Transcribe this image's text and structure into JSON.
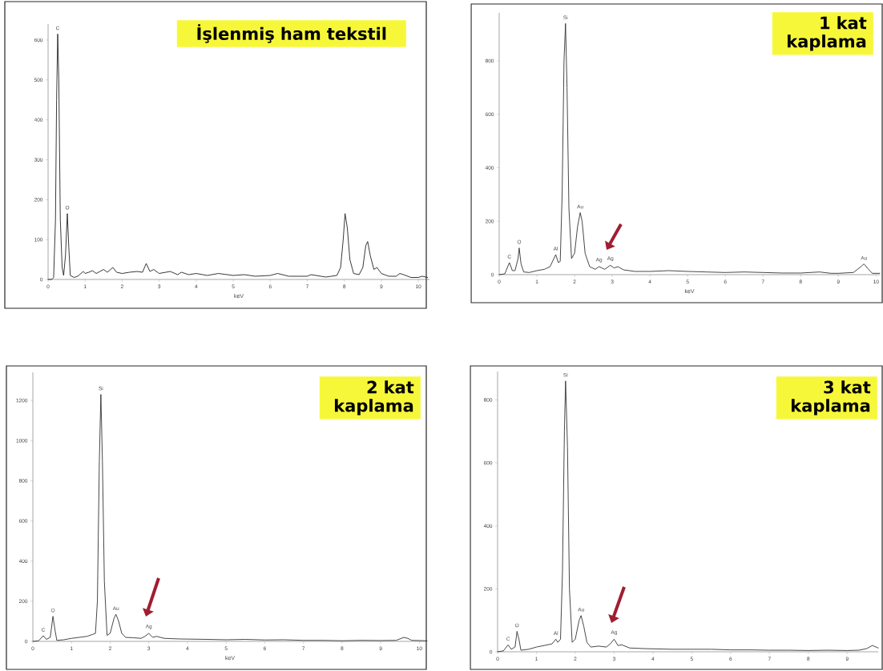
{
  "chart_data": [
    {
      "type": "line",
      "title": "İşlenmiş ham tekstil",
      "xlabel": "keV",
      "color": "#222222",
      "xlim": [
        0,
        10.3
      ],
      "ylim": [
        0,
        640
      ],
      "xticks": [
        0,
        1,
        2,
        3,
        4,
        5,
        6,
        7,
        8,
        9,
        10
      ],
      "yticks": [
        0,
        100,
        200,
        300,
        400,
        500,
        600
      ],
      "x": [
        0,
        0.1,
        0.15,
        0.2,
        0.23,
        0.26,
        0.29,
        0.33,
        0.38,
        0.42,
        0.47,
        0.52,
        0.56,
        0.6,
        0.7,
        0.8,
        0.95,
        1.0,
        1.1,
        1.2,
        1.3,
        1.4,
        1.5,
        1.6,
        1.75,
        1.85,
        2.0,
        2.2,
        2.4,
        2.55,
        2.65,
        2.75,
        2.85,
        3.0,
        3.3,
        3.5,
        3.6,
        3.8,
        4.0,
        4.3,
        4.6,
        5.0,
        5.3,
        5.6,
        6.0,
        6.2,
        6.5,
        7.0,
        7.1,
        7.5,
        7.8,
        7.9,
        7.97,
        8.02,
        8.08,
        8.15,
        8.25,
        8.4,
        8.5,
        8.58,
        8.63,
        8.7,
        8.8,
        8.88,
        9.0,
        9.2,
        9.4,
        9.5,
        9.6,
        9.8,
        10.0,
        10.1,
        10.25
      ],
      "values": [
        0,
        0,
        5,
        150,
        450,
        615,
        500,
        150,
        30,
        10,
        60,
        165,
        80,
        10,
        5,
        8,
        20,
        15,
        18,
        22,
        15,
        20,
        25,
        18,
        30,
        18,
        15,
        18,
        20,
        18,
        40,
        20,
        25,
        15,
        20,
        12,
        18,
        12,
        15,
        10,
        15,
        10,
        12,
        8,
        10,
        15,
        8,
        8,
        12,
        6,
        10,
        30,
        100,
        165,
        130,
        50,
        15,
        12,
        30,
        85,
        95,
        60,
        25,
        30,
        15,
        8,
        8,
        15,
        12,
        5,
        5,
        8,
        5
      ],
      "annotations": [
        {
          "text": "C",
          "x": 0.26,
          "y": 615
        },
        {
          "text": "O",
          "x": 0.52,
          "y": 165
        }
      ]
    },
    {
      "type": "line",
      "title": "1 kat kaplama",
      "xlabel": "keV",
      "color": "#333333",
      "xlim": [
        0,
        10.1
      ],
      "ylim": [
        0,
        980
      ],
      "xticks": [
        0,
        1,
        2,
        3,
        4,
        5,
        6,
        7,
        8,
        9,
        10
      ],
      "yticks": [
        0,
        200,
        400,
        600,
        800
      ],
      "x": [
        0,
        0.15,
        0.27,
        0.35,
        0.42,
        0.5,
        0.53,
        0.58,
        0.65,
        0.8,
        1.0,
        1.2,
        1.35,
        1.45,
        1.5,
        1.57,
        1.62,
        1.67,
        1.72,
        1.76,
        1.8,
        1.85,
        1.92,
        2.0,
        2.08,
        2.15,
        2.2,
        2.28,
        2.4,
        2.55,
        2.65,
        2.8,
        2.95,
        3.05,
        3.15,
        3.3,
        3.6,
        4.0,
        4.5,
        5.0,
        5.5,
        6.0,
        6.5,
        7.0,
        7.5,
        8.0,
        8.5,
        8.8,
        9.0,
        9.4,
        9.6,
        9.68,
        9.8,
        9.9,
        10.1
      ],
      "values": [
        0,
        3,
        45,
        15,
        15,
        60,
        100,
        40,
        10,
        8,
        15,
        20,
        30,
        60,
        75,
        45,
        50,
        300,
        800,
        940,
        700,
        250,
        60,
        80,
        180,
        232,
        200,
        80,
        30,
        20,
        30,
        20,
        35,
        25,
        30,
        18,
        12,
        12,
        15,
        12,
        10,
        8,
        10,
        8,
        6,
        6,
        10,
        5,
        5,
        8,
        30,
        40,
        20,
        5,
        5
      ],
      "annotations": [
        {
          "text": "C",
          "x": 0.27,
          "y": 45
        },
        {
          "text": "O",
          "x": 0.53,
          "y": 100
        },
        {
          "text": "Al",
          "x": 1.5,
          "y": 75
        },
        {
          "text": "Si",
          "x": 1.76,
          "y": 940
        },
        {
          "text": "Au",
          "x": 2.15,
          "y": 232
        },
        {
          "text": "Ag",
          "x": 2.65,
          "y": 30
        },
        {
          "text": "Ag",
          "x": 2.95,
          "y": 35
        },
        {
          "text": "Au",
          "x": 9.68,
          "y": 40
        }
      ]
    },
    {
      "type": "line",
      "title": "2 kat kaplama",
      "xlabel": "keV",
      "color": "#333333",
      "xlim": [
        0,
        10.2
      ],
      "ylim": [
        0,
        1340
      ],
      "xticks": [
        0,
        1,
        2,
        3,
        4,
        5,
        6,
        7,
        8,
        9,
        10
      ],
      "yticks": [
        0,
        200,
        400,
        600,
        800,
        1000,
        1200
      ],
      "x": [
        0,
        0.15,
        0.27,
        0.35,
        0.45,
        0.52,
        0.57,
        0.62,
        0.8,
        1.0,
        1.2,
        1.4,
        1.55,
        1.62,
        1.67,
        1.72,
        1.76,
        1.8,
        1.85,
        1.92,
        2.0,
        2.1,
        2.15,
        2.22,
        2.3,
        2.4,
        2.6,
        2.8,
        2.9,
        3.0,
        3.1,
        3.2,
        3.4,
        3.8,
        4.5,
        5.0,
        5.5,
        6.0,
        6.5,
        7.0,
        7.5,
        8.0,
        8.5,
        9.0,
        9.4,
        9.6,
        9.7,
        9.8,
        10.2
      ],
      "values": [
        0,
        3,
        28,
        10,
        20,
        125,
        60,
        5,
        8,
        15,
        20,
        25,
        35,
        40,
        200,
        900,
        1230,
        900,
        300,
        30,
        40,
        115,
        135,
        100,
        40,
        20,
        18,
        15,
        25,
        40,
        20,
        25,
        15,
        12,
        10,
        8,
        10,
        7,
        8,
        5,
        5,
        3,
        5,
        4,
        5,
        20,
        15,
        5,
        3
      ],
      "annotations": [
        {
          "text": "C",
          "x": 0.27,
          "y": 28
        },
        {
          "text": "O",
          "x": 0.52,
          "y": 125
        },
        {
          "text": "Si",
          "x": 1.76,
          "y": 1230
        },
        {
          "text": "Au",
          "x": 2.15,
          "y": 135
        },
        {
          "text": "Ag",
          "x": 3.0,
          "y": 40
        }
      ]
    },
    {
      "type": "line",
      "title": "3 kat kaplama",
      "color": "#333333",
      "xlim": [
        0,
        9.8
      ],
      "ylim": [
        0,
        890
      ],
      "xticks": [
        0,
        1,
        2,
        3,
        4,
        5,
        6,
        7,
        8,
        9
      ],
      "yticks": [
        0,
        200,
        400,
        600,
        800
      ],
      "x": [
        0,
        0.15,
        0.27,
        0.35,
        0.45,
        0.5,
        0.55,
        0.6,
        0.8,
        1.0,
        1.2,
        1.4,
        1.5,
        1.55,
        1.62,
        1.67,
        1.72,
        1.75,
        1.8,
        1.85,
        1.92,
        2.0,
        2.1,
        2.15,
        2.22,
        2.3,
        2.4,
        2.6,
        2.8,
        2.9,
        3.0,
        3.05,
        3.1,
        3.2,
        3.4,
        3.8,
        4.5,
        5.0,
        5.5,
        6.0,
        6.5,
        7.0,
        7.5,
        8.0,
        8.5,
        9.0,
        9.3,
        9.5,
        9.65,
        9.8
      ],
      "values": [
        0,
        3,
        22,
        8,
        15,
        65,
        40,
        5,
        8,
        15,
        20,
        25,
        40,
        30,
        40,
        250,
        700,
        860,
        650,
        200,
        30,
        40,
        100,
        115,
        80,
        30,
        15,
        18,
        15,
        25,
        40,
        30,
        20,
        22,
        12,
        10,
        8,
        8,
        8,
        6,
        6,
        5,
        5,
        4,
        5,
        4,
        5,
        10,
        20,
        12
      ],
      "annotations": [
        {
          "text": "C",
          "x": 0.27,
          "y": 22
        },
        {
          "text": "O",
          "x": 0.5,
          "y": 65
        },
        {
          "text": "Al",
          "x": 1.5,
          "y": 40
        },
        {
          "text": "Si",
          "x": 1.75,
          "y": 860
        },
        {
          "text": "Au",
          "x": 2.15,
          "y": 115
        },
        {
          "text": "Ag",
          "x": 3.0,
          "y": 40
        }
      ]
    }
  ]
}
